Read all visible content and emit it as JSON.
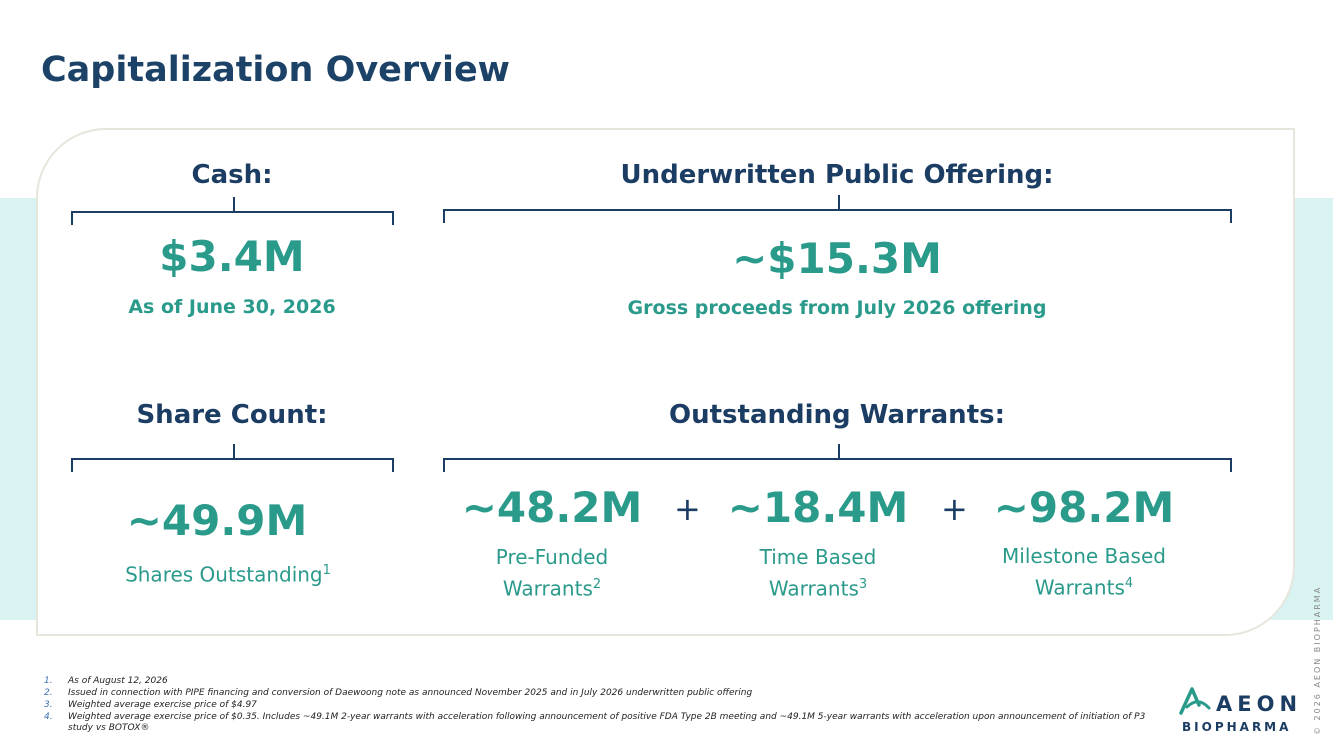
{
  "title": "Capitalization Overview",
  "cash": {
    "heading": "Cash:",
    "value": "$3.4M",
    "caption": "As of June 30, 2026"
  },
  "offering": {
    "heading": "Underwritten Public Offering:",
    "value": "~$15.3M",
    "caption": "Gross proceeds from July 2026 offering"
  },
  "shares": {
    "heading": "Share Count:",
    "value": "~49.9M",
    "caption": "Shares Outstanding",
    "footnote_ref": "1"
  },
  "warrants": {
    "heading": "Outstanding Warrants:",
    "plus": "+",
    "items": [
      {
        "value": "~48.2M",
        "line1": "Pre-Funded",
        "line2": "Warrants",
        "footnote_ref": "2"
      },
      {
        "value": "~18.4M",
        "line1": "Time Based",
        "line2": "Warrants",
        "footnote_ref": "3"
      },
      {
        "value": "~98.2M",
        "line1": "Milestone Based",
        "line2": "Warrants",
        "footnote_ref": "4"
      }
    ]
  },
  "footnotes": [
    {
      "num": "1.",
      "text": "As of August 12, 2026"
    },
    {
      "num": "2.",
      "text": "Issued in connection with PIPE financing and conversion of Daewoong note as announced November 2025 and in July 2026 underwritten public offering"
    },
    {
      "num": "3.",
      "text": "Weighted average exercise price of $4.97"
    },
    {
      "num": "4.",
      "text": "Weighted average exercise price of $0.35. Includes ~49.1M 2-year warrants with acceleration following announcement of positive FDA Type 2B meeting and ~49.1M 5-year warrants with acceleration upon announcement of initiation of P3 study vs BOTOX®"
    }
  ],
  "logo": {
    "word": "AEON",
    "sub": "BIOPHARMA"
  },
  "copyright": "© 2026 AEON BIOPHARMA",
  "colors": {
    "navy": "#1c3d63",
    "teal": "#2a9a8b",
    "band": "#d8f3f1"
  }
}
